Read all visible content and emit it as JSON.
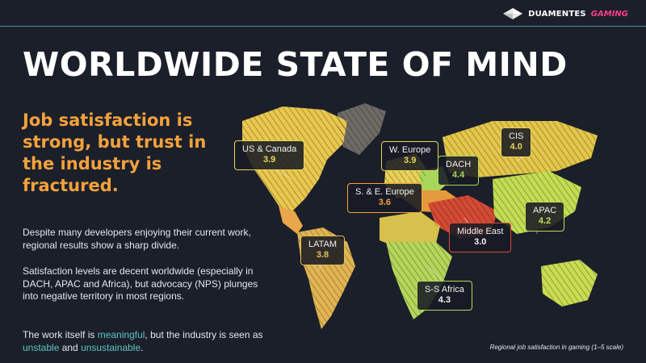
{
  "header": {
    "brand": "DUAMENTES",
    "brand_accent": "GAMING",
    "logo_icon": "diamond-logo-icon"
  },
  "title": "WORLDWIDE STATE OF MIND",
  "headline": "Job satisfaction is strong, but trust in the industry is fractured.",
  "paragraphs": {
    "p1": "Despite many developers enjoying their current work, regional results show a sharp divide.",
    "p2": "Satisfaction levels are decent worldwide (especially in DACH, APAC and Africa), but advocacy (NPS) plunges into negative territory in most regions.",
    "p3": {
      "t1": "The work itself is ",
      "h1": "meaningful",
      "t2": ", but the industry is seen as ",
      "h2": "unstable",
      "t3": " and ",
      "h3": "unsustainable",
      "t4": "."
    }
  },
  "caption": "Regional job satisfaction in gaming (1–5 scale)",
  "colors": {
    "accent_orange": "#f4a23c",
    "highlight_teal": "#5cc6c0",
    "background": "#1b1f2a"
  },
  "regions": [
    {
      "key": "us",
      "name": "US & Canada",
      "value": "3.9",
      "color": "#e9d558"
    },
    {
      "key": "weu",
      "name": "W. Europe",
      "value": "3.9",
      "color": "#e9d558"
    },
    {
      "key": "dach",
      "name": "DACH",
      "value": "4.4",
      "color": "#a8d65a"
    },
    {
      "key": "cis",
      "name": "CIS",
      "value": "4.0",
      "color": "#e9d558"
    },
    {
      "key": "see",
      "name": "S. & E. Europe",
      "value": "3.6",
      "color": "#f4a23c"
    },
    {
      "key": "apac",
      "name": "APAC",
      "value": "4.2",
      "color": "#c2dd52"
    },
    {
      "key": "me",
      "name": "Middle East",
      "value": "3.0",
      "color": "#d64b36"
    },
    {
      "key": "latam",
      "name": "LATAM",
      "value": "3.8",
      "color": "#e0c058"
    },
    {
      "key": "ssa",
      "name": "S-S Africa",
      "value": "4.3",
      "color": "#b6d85a"
    }
  ]
}
